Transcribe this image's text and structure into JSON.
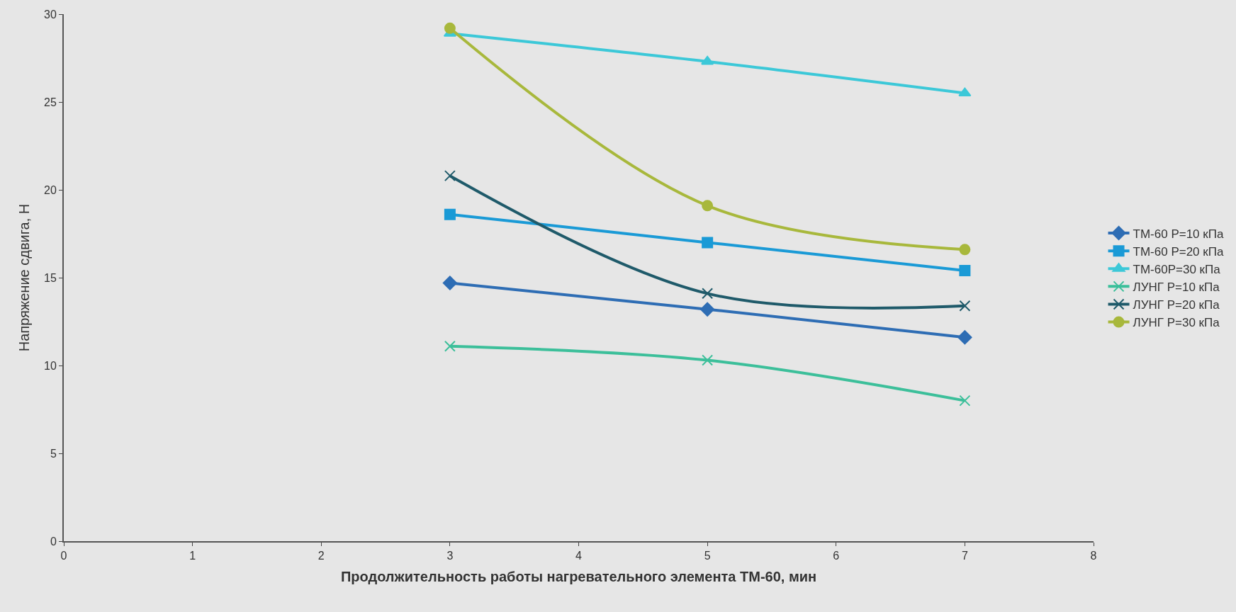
{
  "chart_data": {
    "type": "line",
    "xlabel": "Продолжительность работы нагревательного элемента ТМ-60, мин",
    "ylabel": "Напряжение сдвига, Н",
    "x": [
      3,
      5,
      7
    ],
    "xlim": [
      0,
      8
    ],
    "xticks": [
      0,
      1,
      2,
      3,
      4,
      5,
      6,
      7,
      8
    ],
    "ylim": [
      0,
      30
    ],
    "yticks": [
      0,
      5,
      10,
      15,
      20,
      25,
      30
    ],
    "grid": false,
    "legend": "right",
    "series": [
      {
        "name": "ТМ-60 Р=10 кПа",
        "color": "#2e6db4",
        "marker": "diamond",
        "values": [
          14.7,
          13.2,
          11.6
        ]
      },
      {
        "name": "ТМ-60 Р=20 кПа",
        "color": "#1a9ad6",
        "marker": "square",
        "values": [
          18.6,
          17.0,
          15.4
        ]
      },
      {
        "name": "ТМ-60Р=30 кПа",
        "color": "#3cc8d8",
        "marker": "triangle",
        "values": [
          28.9,
          27.3,
          25.5
        ]
      },
      {
        "name": "ЛУНГ Р=10 кПа",
        "color": "#3cbf9a",
        "marker": "cross",
        "values": [
          11.1,
          10.3,
          8.0
        ]
      },
      {
        "name": "ЛУНГ Р=20 кПа",
        "color": "#1f5a6a",
        "marker": "cross",
        "values": [
          20.8,
          14.1,
          13.4
        ]
      },
      {
        "name": "ЛУНГ Р=30 кПа",
        "color": "#a8b83c",
        "marker": "circle",
        "values": [
          29.2,
          19.1,
          16.6
        ]
      }
    ]
  }
}
